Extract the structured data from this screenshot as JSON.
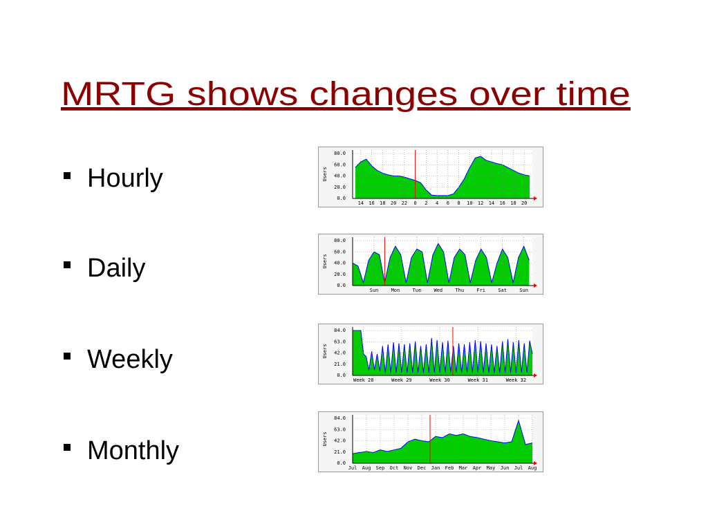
{
  "title": "MRTG shows changes over time",
  "bullets": [
    "Hourly",
    "Daily",
    "Weekly",
    "Monthly"
  ],
  "chart_data": [
    {
      "type": "area",
      "ylabel": "Users",
      "fill": "#00cc00",
      "line_color": "#0000ff",
      "marker_color": "#ff0000",
      "grid": true,
      "x": [
        13,
        14,
        15,
        16,
        17,
        18,
        19,
        20,
        21,
        22,
        23,
        24,
        25,
        26,
        27,
        28,
        29,
        30,
        31,
        32,
        33,
        34,
        35,
        36,
        37,
        38,
        39,
        40,
        41,
        42,
        43,
        44,
        45
      ],
      "values": [
        55,
        65,
        70,
        58,
        50,
        45,
        42,
        40,
        40,
        38,
        35,
        32,
        28,
        15,
        6,
        5,
        5,
        5,
        8,
        20,
        35,
        55,
        72,
        75,
        68,
        65,
        62,
        60,
        55,
        50,
        45,
        42,
        40
      ],
      "xlim": [
        12.5,
        45.5
      ],
      "ylim": [
        0,
        80
      ],
      "xticks": [
        {
          "value": 14,
          "label": "14"
        },
        {
          "value": 16,
          "label": "16"
        },
        {
          "value": 18,
          "label": "18"
        },
        {
          "value": 20,
          "label": "20"
        },
        {
          "value": 22,
          "label": "22"
        },
        {
          "value": 24,
          "label": "0"
        },
        {
          "value": 26,
          "label": "2"
        },
        {
          "value": 28,
          "label": "4"
        },
        {
          "value": 30,
          "label": "6"
        },
        {
          "value": 32,
          "label": "8"
        },
        {
          "value": 34,
          "label": "10"
        },
        {
          "value": 36,
          "label": "12"
        },
        {
          "value": 38,
          "label": "14"
        },
        {
          "value": 40,
          "label": "16"
        },
        {
          "value": 42,
          "label": "18"
        },
        {
          "value": 44,
          "label": "20"
        }
      ],
      "yticks": [
        {
          "value": 0,
          "label": "0.0"
        },
        {
          "value": 20,
          "label": "20.0"
        },
        {
          "value": 40,
          "label": "40.0"
        },
        {
          "value": 60,
          "label": "60.0"
        },
        {
          "value": 80,
          "label": "80.0"
        }
      ],
      "markers": [
        24
      ]
    },
    {
      "type": "area",
      "ylabel": "Users",
      "fill": "#00cc00",
      "line_color": "#0000ff",
      "marker_color": "#ff0000",
      "grid": true,
      "x": [
        -0.5,
        -0.25,
        0,
        0.25,
        0.5,
        0.75,
        1,
        1.25,
        1.5,
        1.75,
        2,
        2.25,
        2.5,
        2.75,
        3,
        3.25,
        3.5,
        3.75,
        4,
        4.25,
        4.5,
        4.75,
        5,
        5.25,
        5.5,
        5.75,
        6,
        6.25,
        6.5,
        6.75,
        7,
        7.25,
        7.5,
        7.75
      ],
      "values": [
        40,
        35,
        5,
        45,
        60,
        55,
        5,
        50,
        70,
        55,
        5,
        50,
        65,
        60,
        5,
        55,
        75,
        60,
        5,
        50,
        65,
        55,
        5,
        45,
        65,
        50,
        5,
        40,
        65,
        50,
        5,
        50,
        70,
        45
      ],
      "xlim": [
        -0.5,
        7.9
      ],
      "ylim": [
        0,
        80
      ],
      "xticks": [
        {
          "value": 0.5,
          "label": "Sun"
        },
        {
          "value": 1.5,
          "label": "Mon"
        },
        {
          "value": 2.5,
          "label": "Tue"
        },
        {
          "value": 3.5,
          "label": "Wed"
        },
        {
          "value": 4.5,
          "label": "Thu"
        },
        {
          "value": 5.5,
          "label": "Fri"
        },
        {
          "value": 6.5,
          "label": "Sat"
        },
        {
          "value": 7.5,
          "label": "Sun"
        }
      ],
      "yticks": [
        {
          "value": 0,
          "label": "0.0"
        },
        {
          "value": 20,
          "label": "20.0"
        },
        {
          "value": 40,
          "label": "40.0"
        },
        {
          "value": 60,
          "label": "60.0"
        },
        {
          "value": 80,
          "label": "80.0"
        }
      ],
      "markers": [
        1
      ]
    },
    {
      "type": "area",
      "ylabel": "Users",
      "fill": "#00cc00",
      "line_color": "#0000ff",
      "marker_color": "#ff0000",
      "grid": true,
      "x": [
        -2,
        -1.5,
        -1,
        -0.5,
        0,
        0.5,
        1,
        1.5,
        2,
        2.5,
        3,
        3.5,
        4,
        4.5,
        5,
        5.5,
        6,
        6.5,
        7,
        7.5,
        8,
        8.5,
        9,
        9.5,
        10,
        10.5,
        11,
        11.5,
        12,
        12.5,
        13,
        13.5,
        14,
        14.5,
        15,
        15.5,
        16,
        16.5,
        17,
        17.5,
        18,
        18.5,
        19,
        19.5,
        20,
        20.5,
        21,
        21.5,
        22,
        22.5,
        23,
        23.5,
        24,
        24.5,
        25,
        25.5,
        26,
        26.5,
        27,
        27.5,
        28,
        28.5,
        29,
        29.5,
        30,
        30.5,
        31
      ],
      "values": [
        84,
        84,
        84,
        84,
        40,
        35,
        10,
        45,
        10,
        40,
        8,
        55,
        5,
        58,
        5,
        62,
        5,
        60,
        5,
        58,
        5,
        60,
        5,
        64,
        5,
        55,
        5,
        58,
        5,
        70,
        5,
        66,
        5,
        62,
        5,
        65,
        5,
        55,
        5,
        60,
        5,
        58,
        5,
        62,
        5,
        66,
        5,
        64,
        5,
        60,
        5,
        58,
        5,
        55,
        5,
        64,
        5,
        68,
        5,
        62,
        5,
        66,
        5,
        60,
        5,
        65,
        40
      ],
      "xlim": [
        -2,
        31
      ],
      "ylim": [
        0,
        84
      ],
      "xticks": [
        {
          "value": 0,
          "label": "Week 28"
        },
        {
          "value": 7,
          "label": "Week 29"
        },
        {
          "value": 14,
          "label": "Week 30"
        },
        {
          "value": 21,
          "label": "Week 31"
        },
        {
          "value": 28,
          "label": "Week 32"
        }
      ],
      "yticks": [
        {
          "value": 0,
          "label": "0.0"
        },
        {
          "value": 21,
          "label": "21.0"
        },
        {
          "value": 42,
          "label": "42.0"
        },
        {
          "value": 63,
          "label": "63.0"
        },
        {
          "value": 84,
          "label": "84.0"
        }
      ],
      "markers": [
        16.4
      ]
    },
    {
      "type": "area",
      "ylabel": "Users",
      "fill": "#00cc00",
      "line_color": "#0000ff",
      "marker_color": "#ff0000",
      "grid": true,
      "x": [
        0,
        0.5,
        1,
        1.5,
        2,
        2.5,
        3,
        3.5,
        4,
        4.5,
        5,
        5.5,
        6,
        6.5,
        7,
        7.5,
        8,
        8.5,
        9,
        9.5,
        10,
        10.5,
        11,
        11.5,
        12,
        12.5,
        13
      ],
      "values": [
        18,
        20,
        22,
        20,
        25,
        22,
        25,
        28,
        40,
        45,
        42,
        40,
        50,
        48,
        55,
        52,
        55,
        50,
        48,
        45,
        42,
        40,
        38,
        40,
        80,
        35,
        38
      ],
      "xlim": [
        0,
        13
      ],
      "ylim": [
        0,
        84
      ],
      "xticks": [
        {
          "value": 0,
          "label": "Jul"
        },
        {
          "value": 1,
          "label": "Aug"
        },
        {
          "value": 2,
          "label": "Sep"
        },
        {
          "value": 3,
          "label": "Oct"
        },
        {
          "value": 4,
          "label": "Nov"
        },
        {
          "value": 5,
          "label": "Dec"
        },
        {
          "value": 6,
          "label": "Jan"
        },
        {
          "value": 7,
          "label": "Feb"
        },
        {
          "value": 8,
          "label": "Mar"
        },
        {
          "value": 9,
          "label": "Apr"
        },
        {
          "value": 10,
          "label": "May"
        },
        {
          "value": 11,
          "label": "Jun"
        },
        {
          "value": 12,
          "label": "Jul"
        },
        {
          "value": 13,
          "label": "Aug"
        }
      ],
      "yticks": [
        {
          "value": 0,
          "label": "0.0"
        },
        {
          "value": 21,
          "label": "21.0"
        },
        {
          "value": 42,
          "label": "42.0"
        },
        {
          "value": 63,
          "label": "63.0"
        },
        {
          "value": 84,
          "label": "84.0"
        }
      ],
      "markers": [
        5.6
      ]
    }
  ]
}
